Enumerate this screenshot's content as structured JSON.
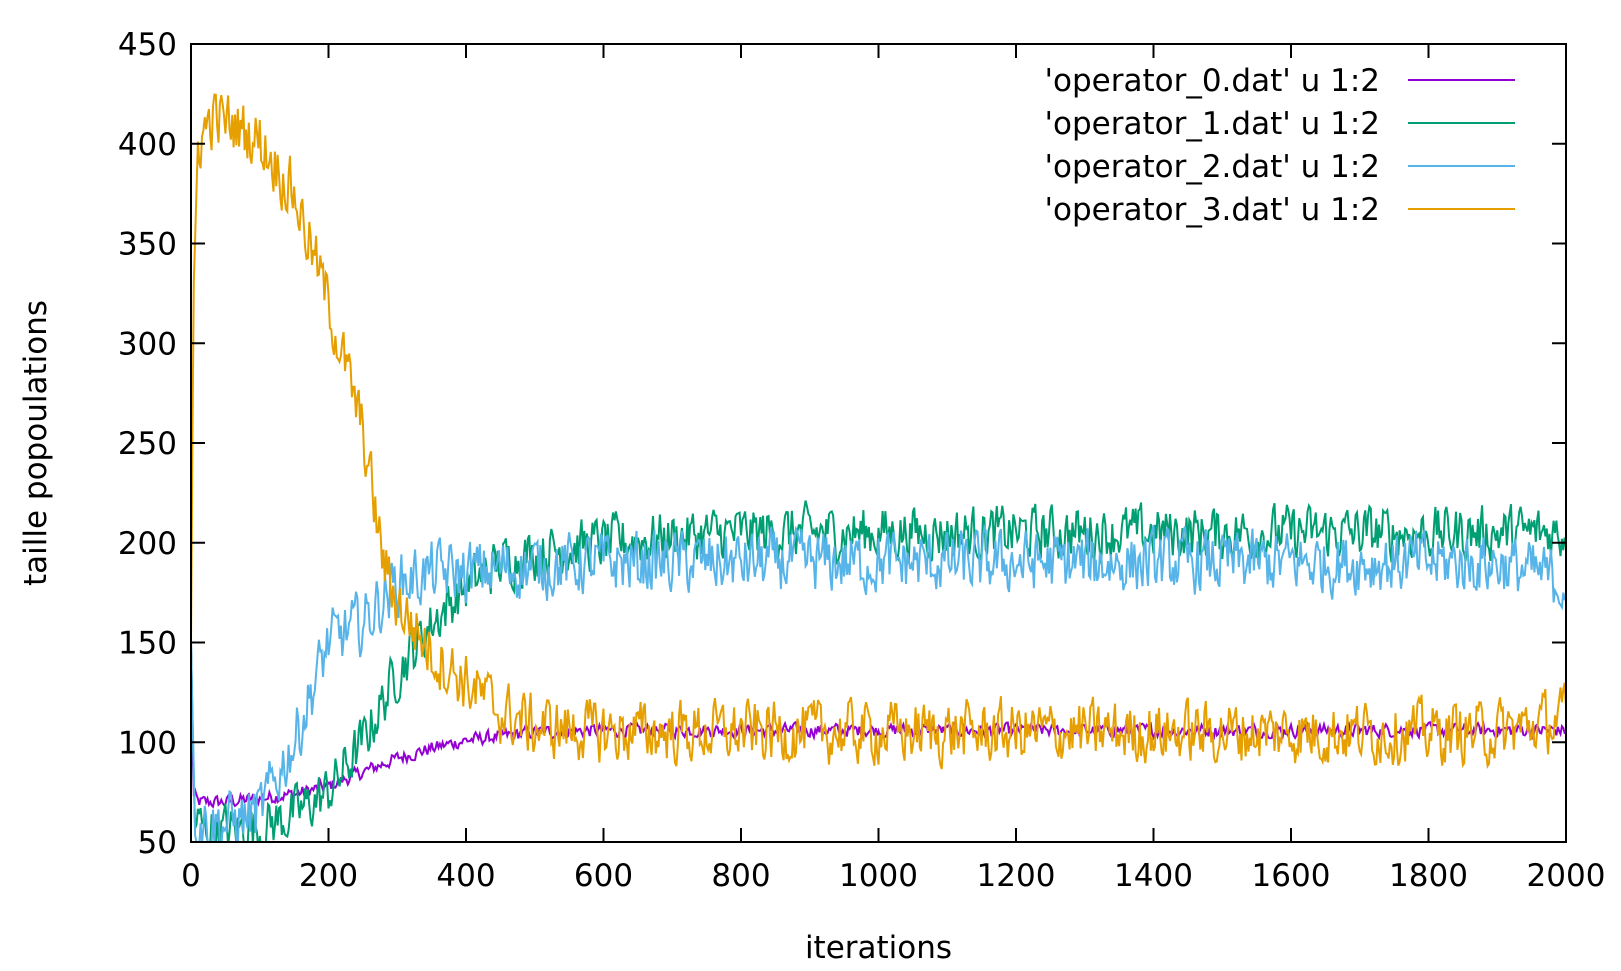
{
  "chart_data": {
    "type": "line",
    "title": "",
    "xlabel": "iterations",
    "ylabel": "taille popoulations",
    "xlim": [
      0,
      2000
    ],
    "ylim": [
      50,
      450
    ],
    "xticks": [
      0,
      200,
      400,
      600,
      800,
      1000,
      1200,
      1400,
      1600,
      1800,
      2000
    ],
    "yticks": [
      50,
      100,
      150,
      200,
      250,
      300,
      350,
      400,
      450
    ],
    "grid": false,
    "legend_position": "top-right",
    "series": [
      {
        "name": "'operator_0.dat' u 1:2",
        "color": "#9400d3",
        "x": [
          0,
          3,
          10,
          50,
          100,
          150,
          200,
          250,
          300,
          350,
          400,
          450,
          500,
          600,
          700,
          800,
          900,
          1000,
          1100,
          1200,
          1300,
          1400,
          1500,
          1600,
          1700,
          1800,
          1900,
          2000
        ],
        "y": [
          150,
          75,
          70,
          70,
          72,
          74,
          78,
          85,
          92,
          97,
          101,
          103,
          105,
          106,
          106,
          106,
          106,
          106,
          106,
          106,
          106,
          106,
          106,
          106,
          106,
          106,
          106,
          106
        ],
        "noise": 3
      },
      {
        "name": "'operator_1.dat' u 1:2",
        "color": "#009e73",
        "x": [
          0,
          5,
          20,
          50,
          100,
          150,
          200,
          250,
          300,
          350,
          400,
          450,
          500,
          600,
          700,
          800,
          900,
          1000,
          1100,
          1200,
          1300,
          1400,
          1500,
          1600,
          1700,
          1800,
          1900,
          2000
        ],
        "y": [
          150,
          60,
          57,
          56,
          57,
          64,
          75,
          100,
          135,
          160,
          178,
          190,
          195,
          200,
          203,
          205,
          205,
          205,
          205,
          205,
          205,
          205,
          205,
          205,
          205,
          205,
          205,
          205
        ],
        "noise": 12
      },
      {
        "name": "'operator_2.dat' u 1:2",
        "color": "#56b4e9",
        "x": [
          0,
          5,
          20,
          50,
          100,
          150,
          200,
          250,
          300,
          350,
          400,
          450,
          500,
          600,
          700,
          800,
          900,
          1000,
          1100,
          1200,
          1300,
          1400,
          1500,
          1600,
          1700,
          1800,
          1900,
          2000
        ],
        "y": [
          150,
          62,
          60,
          59,
          65,
          100,
          150,
          160,
          180,
          185,
          185,
          187,
          188,
          190,
          190,
          190,
          190,
          190,
          190,
          190,
          190,
          190,
          190,
          190,
          190,
          190,
          190,
          180
        ],
        "noise": 14
      },
      {
        "name": "'operator_3.dat' u 1:2",
        "color": "#e69f00",
        "x": [
          0,
          3,
          10,
          30,
          60,
          100,
          150,
          200,
          250,
          280,
          300,
          350,
          400,
          450,
          500,
          600,
          700,
          800,
          900,
          1000,
          1100,
          1200,
          1300,
          1400,
          1500,
          1600,
          1700,
          1800,
          1900,
          2000
        ],
        "y": [
          150,
          300,
          400,
          413,
          410,
          402,
          375,
          320,
          255,
          190,
          170,
          145,
          130,
          115,
          108,
          105,
          105,
          105,
          105,
          105,
          105,
          105,
          105,
          105,
          105,
          105,
          105,
          105,
          105,
          112
        ],
        "noise": 14
      }
    ]
  }
}
